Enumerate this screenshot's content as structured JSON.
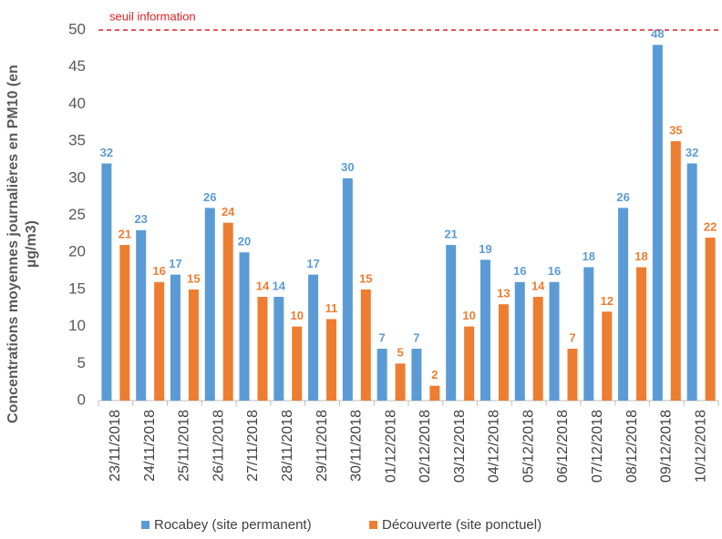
{
  "chart_data": {
    "type": "bar",
    "ylabel": "Concentrations moyennes journalières en PM10 (en µg/m3)",
    "categories": [
      "23/11/2018",
      "24/11/2018",
      "25/11/2018",
      "26/11/2018",
      "27/11/2018",
      "28/11/2018",
      "29/11/2018",
      "30/11/2018",
      "01/12/2018",
      "02/12/2018",
      "03/12/2018",
      "04/12/2018",
      "05/12/2018",
      "06/12/2018",
      "07/12/2018",
      "08/12/2018",
      "09/12/2018",
      "10/12/2018"
    ],
    "series": [
      {
        "name": "Rocabey (site permanent)",
        "color": "#5b9bd5",
        "values": [
          32,
          23,
          17,
          26,
          20,
          14,
          17,
          30,
          7,
          7,
          21,
          19,
          16,
          16,
          18,
          26,
          48,
          32
        ]
      },
      {
        "name": "Découverte (site ponctuel)",
        "color": "#ed7d31",
        "values": [
          21,
          16,
          15,
          24,
          14,
          10,
          11,
          15,
          5,
          2,
          10,
          13,
          14,
          7,
          12,
          18,
          35,
          22
        ]
      }
    ],
    "ylim": [
      0,
      50
    ],
    "yticks": [
      0,
      5,
      10,
      15,
      20,
      25,
      30,
      35,
      40,
      45,
      50
    ],
    "grid": false,
    "legend": "bottom",
    "annotations": [
      {
        "text": "seuil information",
        "value": 50,
        "color": "#e02020"
      }
    ]
  }
}
